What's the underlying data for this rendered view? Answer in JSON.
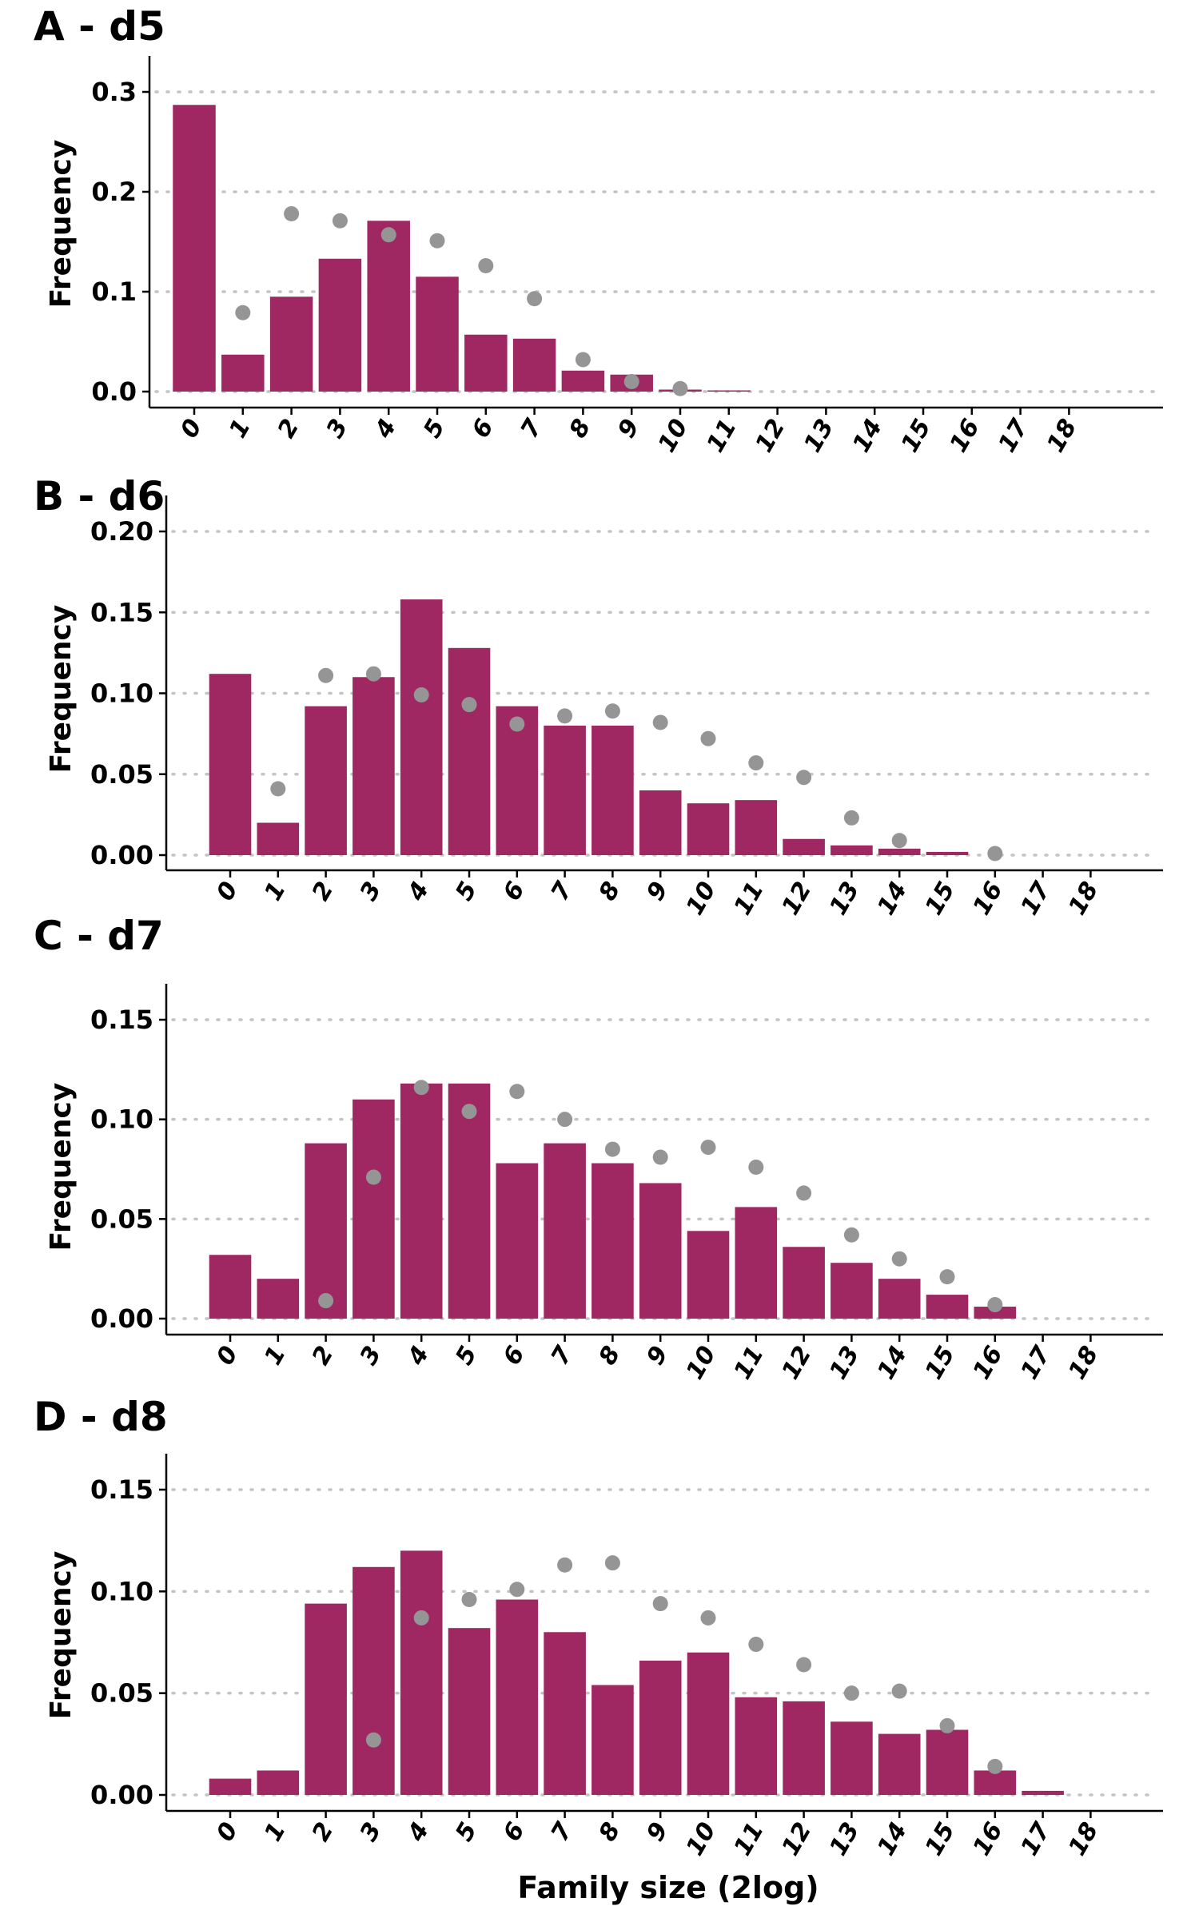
{
  "colors": {
    "bar": "#a02862",
    "point": "#959595"
  },
  "x_axis_label": "Family size (2log)",
  "chart_data": [
    {
      "type": "bar",
      "title": "A - d5",
      "ylabel": "Frequency",
      "ylim": [
        0,
        0.3
      ],
      "yticks": [
        "0.0",
        "0.1",
        "0.2",
        "0.3"
      ],
      "categories": [
        "0",
        "1",
        "2",
        "3",
        "4",
        "5",
        "6",
        "7",
        "8",
        "9",
        "10",
        "11",
        "12",
        "13",
        "14",
        "15",
        "16",
        "17",
        "18"
      ],
      "bars": [
        0.287,
        0.037,
        0.095,
        0.133,
        0.171,
        0.115,
        0.057,
        0.053,
        0.021,
        0.017,
        0.002,
        0.001,
        0,
        0,
        0,
        0,
        0,
        0,
        0
      ],
      "points": [
        null,
        0.079,
        0.178,
        0.171,
        0.157,
        0.151,
        0.126,
        0.093,
        0.032,
        0.01,
        0.003,
        null,
        null,
        null,
        null,
        null,
        null,
        null,
        null
      ]
    },
    {
      "type": "bar",
      "title": "B - d6",
      "ylabel": "Frequency",
      "ylim": [
        0,
        0.2
      ],
      "yticks": [
        "0.00",
        "0.05",
        "0.10",
        "0.15",
        "0.20"
      ],
      "categories": [
        "0",
        "1",
        "2",
        "3",
        "4",
        "5",
        "6",
        "7",
        "8",
        "9",
        "10",
        "11",
        "12",
        "13",
        "14",
        "15",
        "16",
        "17",
        "18"
      ],
      "bars": [
        0.112,
        0.02,
        0.092,
        0.11,
        0.158,
        0.128,
        0.092,
        0.08,
        0.08,
        0.04,
        0.032,
        0.034,
        0.01,
        0.006,
        0.004,
        0.002,
        0,
        0,
        0
      ],
      "points": [
        null,
        0.041,
        0.111,
        0.112,
        0.099,
        0.093,
        0.081,
        0.086,
        0.089,
        0.082,
        0.072,
        0.057,
        0.048,
        0.023,
        0.009,
        null,
        0.001,
        null,
        null
      ]
    },
    {
      "type": "bar",
      "title": "C - d7",
      "ylabel": "Frequency",
      "ylim": [
        0,
        0.15
      ],
      "yticks": [
        "0.00",
        "0.05",
        "0.10",
        "0.15"
      ],
      "categories": [
        "0",
        "1",
        "2",
        "3",
        "4",
        "5",
        "6",
        "7",
        "8",
        "9",
        "10",
        "11",
        "12",
        "13",
        "14",
        "15",
        "16",
        "17",
        "18"
      ],
      "bars": [
        0.032,
        0.02,
        0.088,
        0.11,
        0.118,
        0.118,
        0.078,
        0.088,
        0.078,
        0.068,
        0.044,
        0.056,
        0.036,
        0.028,
        0.02,
        0.012,
        0.006,
        0,
        0
      ],
      "points": [
        null,
        null,
        0.009,
        0.071,
        0.116,
        0.104,
        0.114,
        0.1,
        0.085,
        0.081,
        0.086,
        0.076,
        0.063,
        0.042,
        0.03,
        0.021,
        0.007,
        null,
        null
      ]
    },
    {
      "type": "bar",
      "title": "D - d8",
      "ylabel": "Frequency",
      "ylim": [
        0,
        0.15
      ],
      "yticks": [
        "0.00",
        "0.05",
        "0.10",
        "0.15"
      ],
      "categories": [
        "0",
        "1",
        "2",
        "3",
        "4",
        "5",
        "6",
        "7",
        "8",
        "9",
        "10",
        "11",
        "12",
        "13",
        "14",
        "15",
        "16",
        "17",
        "18"
      ],
      "bars": [
        0.008,
        0.012,
        0.094,
        0.112,
        0.12,
        0.082,
        0.096,
        0.08,
        0.054,
        0.066,
        0.07,
        0.048,
        0.046,
        0.036,
        0.03,
        0.032,
        0.012,
        0.002,
        0
      ],
      "points": [
        null,
        null,
        null,
        0.027,
        0.087,
        0.096,
        0.101,
        0.113,
        0.114,
        0.094,
        0.087,
        0.074,
        0.064,
        0.05,
        0.051,
        0.034,
        0.014,
        null,
        null
      ]
    }
  ]
}
